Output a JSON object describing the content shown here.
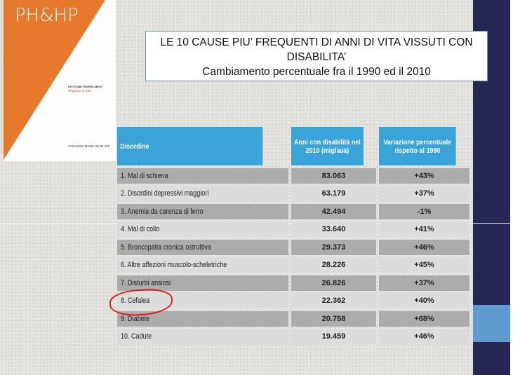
{
  "cover": {
    "logo": "PH&HP",
    "series": "PUBLIC HEALTH & HEALTH POLICY",
    "subtitle": "FACTS AND FIGURES ABOUT",
    "title": "Migraine in Italy",
    "publisher": "CONSORZIO MARIO NEGRI SUD"
  },
  "title": {
    "line1": "LE 10 CAUSE PIU’ FREQUENTI DI ANNI DI VITA VISSUTI CON",
    "line2": "DISABILITA’",
    "line3": "Cambiamento percentuale fra il 1990 ed il 2010"
  },
  "table": {
    "headers": [
      "Disordine",
      "Anni con disabilità nel 2010 (migliaia)",
      "Variazione percentuale rispetto al 1990"
    ],
    "rows": [
      [
        "1. Mal di schiena",
        "83.063",
        "+43%"
      ],
      [
        "2. Disordini depressivi maggiori",
        "63.179",
        "+37%"
      ],
      [
        "3. Anemia da carenza di ferro",
        "42.494",
        "-1%"
      ],
      [
        "4. Mal di collo",
        "33.640",
        "+41%"
      ],
      [
        "5. Broncopatia cronica ostruttiva",
        "29.373",
        "+46%"
      ],
      [
        "6. Altre affezioni muscolo-scheletriche",
        "28.226",
        "+45%"
      ],
      [
        "7. Disturbi ansiosi",
        "26.826",
        "+37%"
      ],
      [
        "8. Cefalea",
        "22.362",
        "+40%"
      ],
      [
        "9. Diabete",
        "20.758",
        "+68%"
      ],
      [
        "10. Cadute",
        "19.459",
        "+46%"
      ]
    ],
    "highlighted_row": 7
  },
  "colors": {
    "header": "#3aa3d8",
    "navy": "#252651",
    "orange": "#e8792c",
    "highlight": "#e21a1a"
  }
}
